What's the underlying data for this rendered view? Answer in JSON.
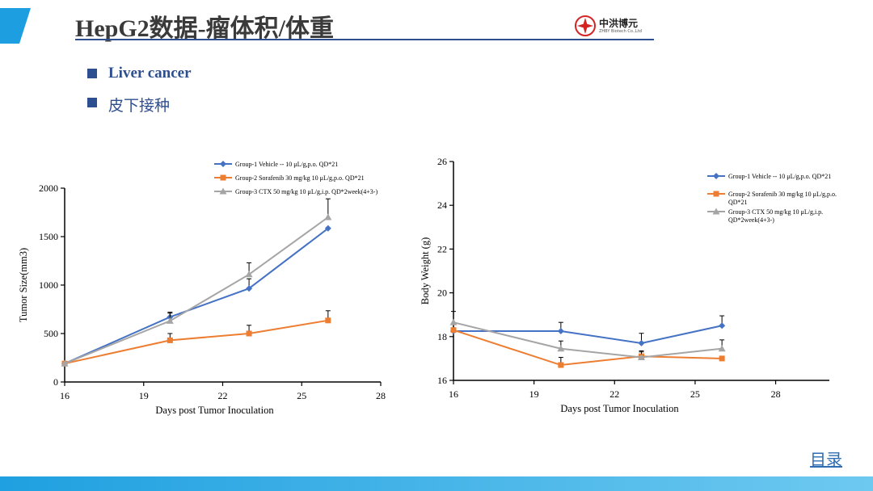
{
  "slide": {
    "title": "HepG2数据-瘤体积/体重",
    "accent_color": "#2e4f8f",
    "logo": {
      "name": "中洪博元",
      "sub": "ZHBY Biotech Co.,Ltd"
    },
    "bullets": [
      "Liver cancer",
      "皮下接种"
    ],
    "toc_link": "目录"
  },
  "chart_data": [
    {
      "type": "line",
      "xlabel": "Days post Tumor Inoculation",
      "ylabel": "Tumor Size(mm3)",
      "xlim": [
        16,
        28
      ],
      "ylim": [
        0,
        2000
      ],
      "x_ticks": [
        16,
        19,
        22,
        25,
        28
      ],
      "y_ticks": [
        0,
        500,
        1000,
        1500,
        2000
      ],
      "series": [
        {
          "name": "Group-1 Vehicle -- 10 μL/g,p.o. QD*21",
          "color": "#4472c4",
          "marker": "diamond",
          "x": [
            16,
            20,
            23,
            26
          ],
          "values": [
            190,
            670,
            965,
            1585
          ],
          "err": [
            0,
            50,
            100,
            0
          ]
        },
        {
          "name": "Group-2 Sorafenib 30 mg/kg 10 μL/g,p.o. QD*21",
          "color": "#ed7d31",
          "marker": "square",
          "x": [
            16,
            20,
            23,
            26
          ],
          "values": [
            190,
            430,
            500,
            635
          ],
          "err": [
            0,
            70,
            85,
            100
          ]
        },
        {
          "name": "Group-3 CTX 50 mg/kg 10 μL/g,i.p. QD*2week(4+3-)",
          "color": "#a5a5a5",
          "marker": "triangle",
          "x": [
            16,
            20,
            23,
            26
          ],
          "values": [
            190,
            630,
            1110,
            1700
          ],
          "err": [
            0,
            80,
            120,
            190
          ]
        }
      ]
    },
    {
      "type": "line",
      "xlabel": "Days post Tumor Inoculation",
      "ylabel": "Body Weight (g)",
      "xlim": [
        16,
        30
      ],
      "ylim": [
        16,
        26
      ],
      "x_ticks": [
        16,
        19,
        22,
        25,
        28
      ],
      "y_ticks": [
        16,
        18,
        20,
        22,
        24,
        26
      ],
      "series": [
        {
          "name": "Group-1 Vehicle -- 10 μL/g,p.o. QD*21",
          "color": "#4472c4",
          "marker": "diamond",
          "x": [
            16,
            20,
            23,
            26
          ],
          "values": [
            18.25,
            18.25,
            17.7,
            18.5
          ],
          "err": [
            0,
            0.4,
            0.45,
            0.45
          ]
        },
        {
          "name": "Group-2 Sorafenib 30 mg/kg 10 μL/g,p.o. QD*21",
          "color": "#ed7d31",
          "marker": "square",
          "x": [
            16,
            20,
            23,
            26
          ],
          "values": [
            18.3,
            16.7,
            17.1,
            17.0
          ],
          "err": [
            0,
            0.35,
            0.25,
            0
          ]
        },
        {
          "name": "Group-3 CTX 50 mg/kg 10 μL/g,i.p. QD*2week(4+3-)",
          "color": "#a5a5a5",
          "marker": "triangle",
          "x": [
            16,
            20,
            23,
            26
          ],
          "values": [
            18.65,
            17.45,
            17.05,
            17.45
          ],
          "err": [
            0.5,
            0.35,
            0.25,
            0.4
          ]
        }
      ]
    }
  ]
}
